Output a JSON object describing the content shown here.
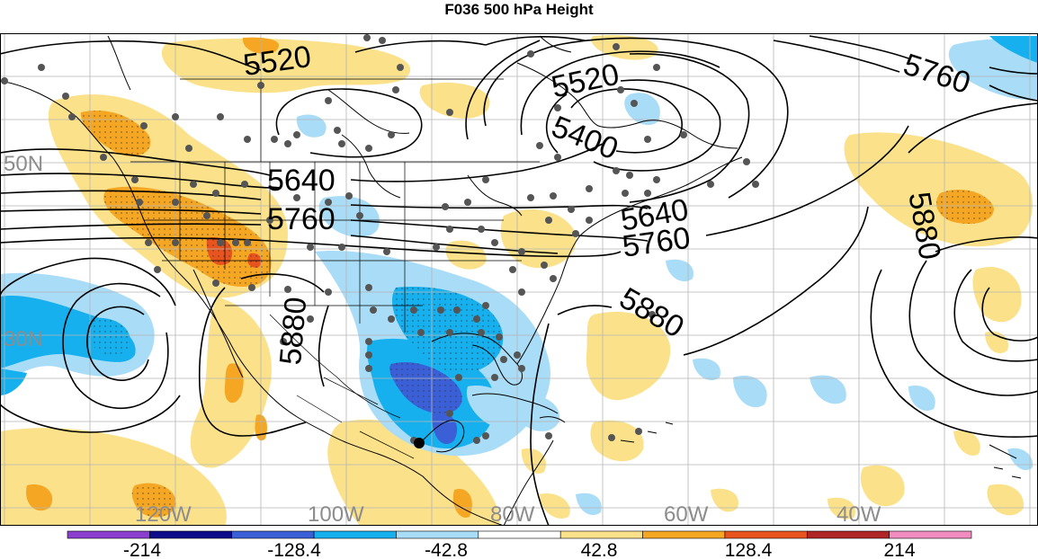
{
  "title": "F036 500 hPa Height",
  "contour_labels": [
    "5520",
    "5520",
    "5400",
    "5640",
    "5640",
    "5760",
    "5760",
    "5760",
    "5880",
    "5880",
    "5880"
  ],
  "lat_labels": [
    "50N",
    "30N"
  ],
  "lon_labels": [
    "120W",
    "100W",
    "80W",
    "60W",
    "40W"
  ],
  "colorbar": {
    "labels": [
      "-214",
      "-128.4",
      "-42.8",
      "42.8",
      "128.4",
      "214"
    ],
    "colors": [
      "#8a3fcf",
      "#0d0d8c",
      "#3b5fd6",
      "#17b0ee",
      "#a9dcf7",
      "#ffffff",
      "#fbe28a",
      "#f5a623",
      "#e8541e",
      "#b02626",
      "#f08cc0"
    ]
  },
  "colors": {
    "contour": "#000000",
    "station": "#555555",
    "grid": "#b5b5b5",
    "axis_label": "#8c8c8c"
  }
}
